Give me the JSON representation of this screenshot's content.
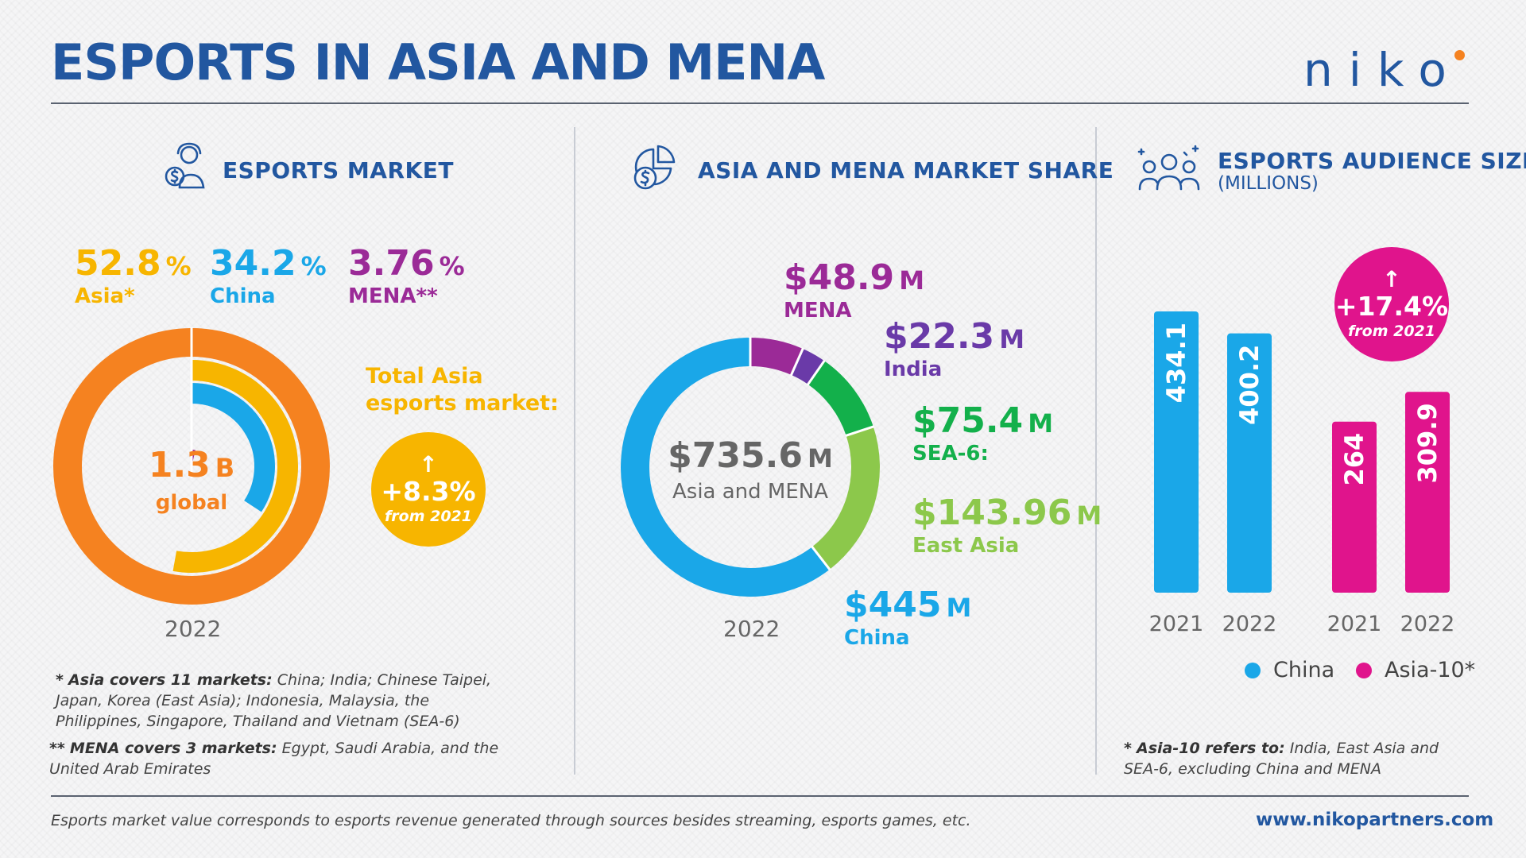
{
  "header": {
    "title": "ESPORTS IN ASIA AND MENA",
    "logo": "niko"
  },
  "sections": {
    "market": {
      "title": "ESPORTS MARKET",
      "stats": [
        {
          "value": "52.8",
          "unit": "%",
          "label": "Asia",
          "mark": "*",
          "color": "#f7b500"
        },
        {
          "value": "34.2",
          "unit": "%",
          "label": "China",
          "mark": "",
          "color": "#1aa7e8"
        },
        {
          "value": "3.76",
          "unit": "%",
          "label": "MENA",
          "mark": "**",
          "color": "#9b2a97"
        }
      ],
      "center_value": "1.3",
      "center_unit": "B",
      "center_label": "global",
      "total_label_line1": "Total Asia",
      "total_label_line2": "esports market:",
      "growth_arrow": "↑",
      "growth_value": "+8.3%",
      "growth_sub": "from 2021",
      "year": "2022"
    },
    "share": {
      "title": "ASIA AND MENA MARKET SHARE",
      "center_value": "$735.6",
      "center_unit": "M",
      "center_label": "Asia and MENA",
      "year": "2022",
      "labels": [
        {
          "value": "$48.9",
          "unit": "M",
          "name": "MENA",
          "color": "#9b2a97"
        },
        {
          "value": "$22.3",
          "unit": "M",
          "name": "India",
          "color": "#6a3aa8"
        },
        {
          "value": "$75.4",
          "unit": "M",
          "name": "SEA-6:",
          "color": "#13b04b"
        },
        {
          "value": "$143.96",
          "unit": "M",
          "name": "East Asia",
          "color": "#8cc84b"
        },
        {
          "value": "$445",
          "unit": "M",
          "name": "China",
          "color": "#1aa7e8"
        }
      ]
    },
    "audience": {
      "title": "ESPORTS AUDIENCE SIZE",
      "subtitle": "(MILLIONS)",
      "growth_arrow": "↑",
      "growth_value": "+17.4%",
      "growth_sub": "from 2021",
      "legend": [
        {
          "name": "China",
          "color": "#1aa7e8"
        },
        {
          "name": "Asia-10*",
          "color": "#e0148c"
        }
      ]
    }
  },
  "chart_data": [
    {
      "type": "pie",
      "title": "ESPORTS MARKET",
      "series": [
        {
          "name": "Asia",
          "value": 52.8,
          "unit": "%",
          "color": "#f7b500"
        },
        {
          "name": "China",
          "value": 34.2,
          "unit": "%",
          "color": "#1aa7e8"
        },
        {
          "name": "MENA",
          "value": 3.76,
          "unit": "%",
          "color": "#9b2a97"
        }
      ],
      "total": {
        "value": 1.3,
        "unit": "B",
        "label": "global",
        "color": "#f58220"
      },
      "year": "2022"
    },
    {
      "type": "pie",
      "title": "ASIA AND MENA MARKET SHARE",
      "values": [
        48.9,
        22.3,
        75.4,
        143.96,
        445
      ],
      "categories": [
        "MENA",
        "India",
        "SEA-6:",
        "East Asia",
        "China"
      ],
      "colors": [
        "#9b2a97",
        "#6a3aa8",
        "#13b04b",
        "#8cc84b",
        "#1aa7e8"
      ],
      "unit": "$M",
      "total": 735.6,
      "year": "2022"
    },
    {
      "type": "bar",
      "title": "ESPORTS AUDIENCE SIZE",
      "subtitle": "(MILLIONS)",
      "categories": [
        "2021",
        "2022"
      ],
      "series": [
        {
          "name": "China",
          "values": [
            434.1,
            400.2
          ],
          "color": "#1aa7e8"
        },
        {
          "name": "Asia-10*",
          "values": [
            264,
            309.9
          ],
          "color": "#e0148c"
        }
      ],
      "ylim": [
        0,
        434.1
      ]
    }
  ],
  "notes": {
    "asia_mark": "*",
    "asia_bold": "Asia covers 11 markets:",
    "asia_text": "China; India; Chinese Taipei, Japan, Korea (East Asia); Indonesia, Malaysia, the Philippines, Singapore, Thailand and Vietnam (SEA-6)",
    "mena_mark": "**",
    "mena_bold": "MENA covers 3 markets:",
    "mena_text": "Egypt, Saudi Arabia, and the United Arab Emirates",
    "asia10_mark": "*",
    "asia10_bold": "Asia-10 refers to:",
    "asia10_text": "India, East Asia and SEA-6, excluding China and MENA"
  },
  "footer": {
    "note": "Esports market value corresponds to esports revenue generated through sources besides streaming, esports games, etc.",
    "url": "www.nikopartners.com"
  }
}
